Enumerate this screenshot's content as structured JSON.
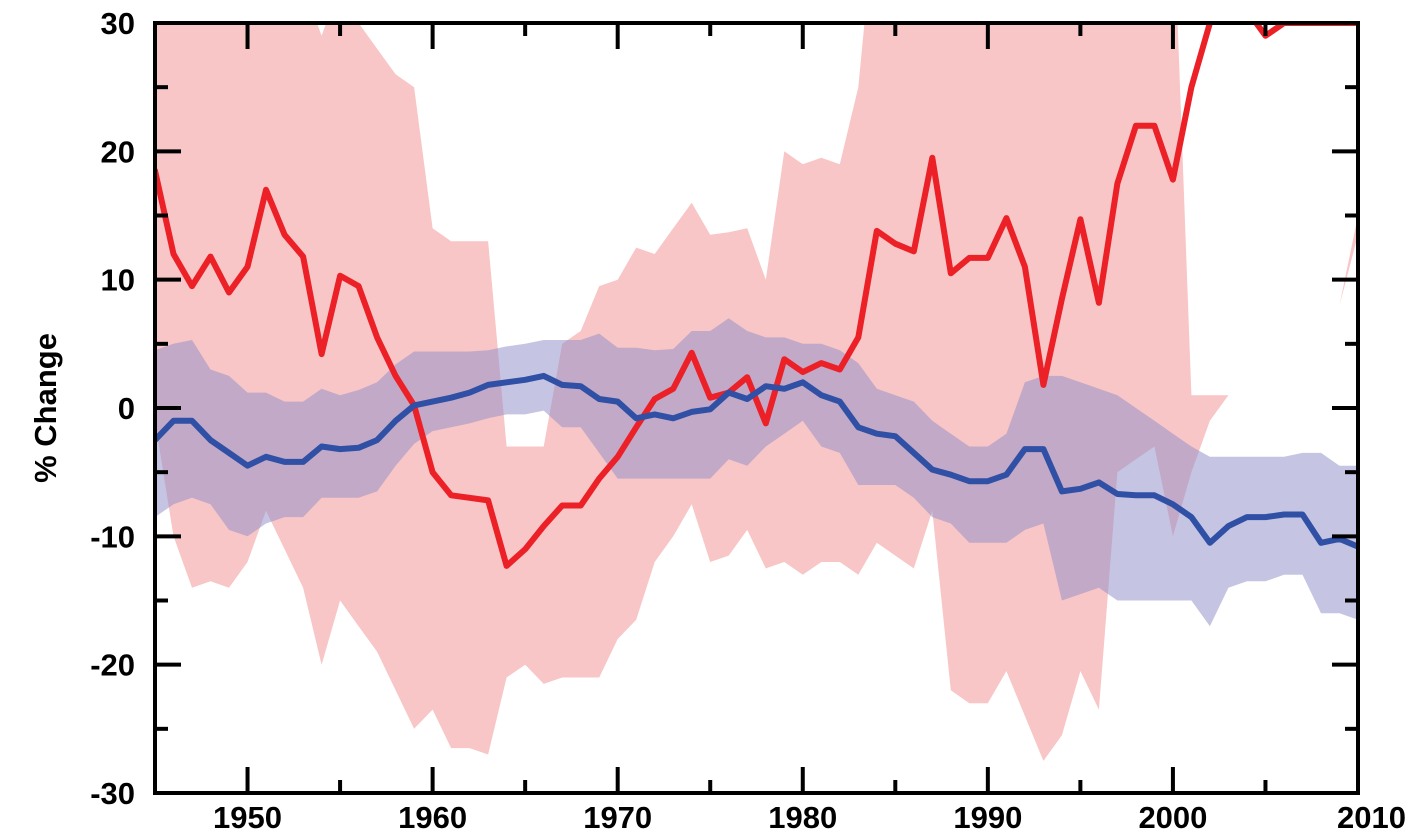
{
  "chart_data": {
    "type": "line",
    "ylabel": "% Change",
    "xlim": [
      1945,
      2010
    ],
    "ylim": [
      -30,
      30
    ],
    "x_ticks": [
      1950,
      1960,
      1970,
      1980,
      1990,
      2000,
      2010
    ],
    "x_tick_labels": [
      "1950",
      "1960",
      "1970",
      "1980",
      "1990",
      "2000",
      "2010"
    ],
    "y_ticks": [
      30,
      20,
      10,
      0,
      -10,
      -20,
      -30
    ],
    "y_tick_labels": [
      "30",
      "20",
      "10",
      "0",
      "-10",
      "-20",
      "-30"
    ],
    "grid": false,
    "x": [
      1945,
      1946,
      1947,
      1948,
      1949,
      1950,
      1951,
      1952,
      1953,
      1954,
      1955,
      1956,
      1957,
      1958,
      1959,
      1960,
      1961,
      1962,
      1963,
      1964,
      1965,
      1966,
      1967,
      1968,
      1969,
      1970,
      1971,
      1972,
      1973,
      1974,
      1975,
      1976,
      1977,
      1978,
      1979,
      1980,
      1981,
      1982,
      1983,
      1984,
      1985,
      1986,
      1987,
      1988,
      1989,
      1990,
      1991,
      1992,
      1993,
      1994,
      1995,
      1996,
      1997,
      1998,
      1999,
      2000,
      2001,
      2002,
      2003,
      2004,
      2005,
      2006,
      2007,
      2008,
      2009,
      2010
    ],
    "series": [
      {
        "color": "#ec2027",
        "band_color": "#f8c6c6",
        "band_opacity": 1,
        "values": [
          18.5,
          12,
          9.5,
          11.8,
          9,
          11,
          17,
          13.5,
          11.8,
          4.2,
          10.3,
          9.5,
          5.5,
          2.5,
          0.2,
          -5,
          -6.8,
          -7,
          -7.2,
          -12.3,
          -11,
          -9.2,
          -7.6,
          -7.6,
          -5.5,
          -3.8,
          -1.5,
          0.7,
          1.5,
          4.3,
          0.8,
          1.2,
          2.4,
          -1.2,
          3.8,
          2.8,
          3.5,
          3,
          5.5,
          13.8,
          12.8,
          12.2,
          19.5,
          10.5,
          11.7,
          11.7,
          14.8,
          11,
          1.8,
          8.5,
          14.7,
          8.2,
          17.5,
          22,
          22,
          17.8,
          25,
          30,
          32,
          31,
          29,
          30,
          30,
          30,
          30,
          30
        ],
        "upper": [
          35,
          35,
          34,
          33,
          32,
          31,
          31,
          33,
          33,
          29,
          33,
          30,
          28,
          26,
          25,
          14,
          13,
          13,
          13,
          -3,
          -3,
          -3,
          5,
          6,
          9.5,
          10,
          12.5,
          12,
          14,
          16,
          13.5,
          13.7,
          14,
          10,
          20,
          19,
          19.5,
          19,
          25,
          40,
          40,
          40,
          40,
          40,
          40,
          40,
          40,
          40,
          40,
          40,
          40,
          40,
          40,
          40,
          40,
          40,
          1,
          1,
          1,
          1,
          1,
          -2,
          0,
          0,
          8,
          15
        ],
        "lower": [
          -1,
          -10,
          -14,
          -13.5,
          -14,
          -12,
          -8,
          -11,
          -14,
          -20,
          -15,
          -17,
          -19,
          -22,
          -25,
          -23.5,
          -26.5,
          -26.5,
          -27,
          -21,
          -20,
          -21.5,
          -21,
          -21,
          -21,
          -18,
          -16.5,
          -12,
          -10,
          -7.5,
          -12,
          -11.5,
          -9.5,
          -12.5,
          -12,
          -13,
          -12,
          -12,
          -13,
          -10.5,
          -11.5,
          -12.5,
          -8,
          -22,
          -23,
          -23,
          -20.5,
          -24,
          -27.5,
          -25.5,
          -20.5,
          -23.5,
          -5,
          -4,
          -3,
          -10,
          -5,
          -1,
          1,
          1,
          1,
          -2,
          0,
          0,
          8,
          13.5
        ]
      },
      {
        "color": "#3050a5",
        "band_color": "#8c8cc8",
        "band_opacity": 0.5,
        "values": [
          -2.5,
          -1,
          -1,
          -2.5,
          -3.5,
          -4.5,
          -3.8,
          -4.2,
          -4.2,
          -3,
          -3.2,
          -3.1,
          -2.5,
          -1,
          0.2,
          0.5,
          0.8,
          1.2,
          1.8,
          2,
          2.2,
          2.5,
          1.8,
          1.7,
          0.7,
          0.5,
          -0.8,
          -0.5,
          -0.8,
          -0.3,
          -0.1,
          1.2,
          0.7,
          1.7,
          1.5,
          2,
          1,
          0.5,
          -1.5,
          -2,
          -2.2,
          -3.5,
          -4.8,
          -5.2,
          -5.7,
          -5.7,
          -5.2,
          -3.2,
          -3.2,
          -6.5,
          -6.3,
          -5.8,
          -6.7,
          -6.8,
          -6.8,
          -7.5,
          -8.5,
          -10.5,
          -9.2,
          -8.5,
          -8.5,
          -8.3,
          -8.3,
          -10.5,
          -10.2,
          -10.8
        ],
        "upper": [
          4.5,
          5,
          5.3,
          3,
          2.5,
          1.2,
          1.2,
          0.5,
          0.5,
          1.5,
          1,
          1.4,
          2,
          3.4,
          4.4,
          4.4,
          4.4,
          4.4,
          4.5,
          4.8,
          5,
          5.3,
          5.3,
          5.3,
          5.8,
          4.7,
          4.7,
          4.5,
          4.6,
          6,
          6,
          7,
          6,
          5.5,
          5.5,
          5,
          5,
          4.5,
          3.5,
          1.5,
          1,
          0.5,
          -1,
          -2,
          -3,
          -3,
          -2,
          2,
          2.5,
          2.5,
          2,
          1.5,
          1,
          0,
          -1,
          -2,
          -3,
          -3.8,
          -3.8,
          -3.8,
          -3.8,
          -3.8,
          -3.5,
          -3.5,
          -4.5,
          -4.5
        ],
        "lower": [
          -8.5,
          -7.5,
          -7,
          -7.5,
          -9.5,
          -10,
          -9,
          -8.5,
          -8.5,
          -7,
          -7,
          -7,
          -6.5,
          -4.5,
          -2.8,
          -1.8,
          -1.5,
          -1.2,
          -0.8,
          -0.5,
          -0.5,
          -0.2,
          -1.5,
          -1.5,
          -3.5,
          -5.5,
          -5.5,
          -5.5,
          -5.5,
          -5.5,
          -5.5,
          -4,
          -4.5,
          -3,
          -2,
          -1,
          -3,
          -3.5,
          -6,
          -6,
          -6,
          -7,
          -8.5,
          -9,
          -10.5,
          -10.5,
          -10.5,
          -9.5,
          -9,
          -15,
          -14.5,
          -14,
          -15,
          -15,
          -15,
          -15,
          -15,
          -17,
          -14,
          -13.5,
          -13.5,
          -13,
          -13,
          -16,
          -16,
          -16.5
        ]
      }
    ]
  }
}
